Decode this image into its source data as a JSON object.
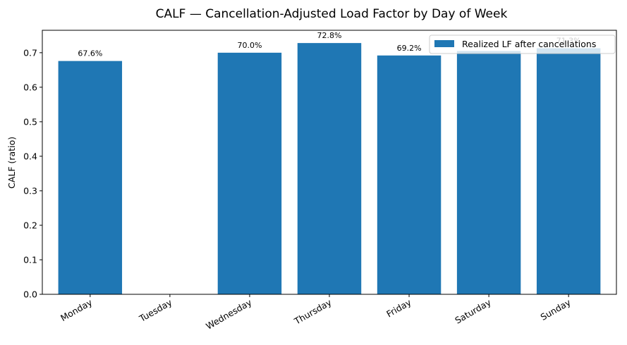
{
  "chart_data": {
    "type": "bar",
    "title": "CALF — Cancellation-Adjusted Load Factor by Day of Week",
    "xlabel": "",
    "ylabel": "CALF (ratio)",
    "categories": [
      "Monday",
      "Tuesday",
      "Wednesday",
      "Thursday",
      "Friday",
      "Saturday",
      "Sunday"
    ],
    "series": [
      {
        "name": "Realized LF after cancellations",
        "values": [
          0.676,
          null,
          0.7,
          0.728,
          0.692,
          0.705,
          0.713
        ],
        "value_labels": [
          "67.6%",
          "",
          "70.0%",
          "72.8%",
          "69.2%",
          "",
          "71.3%"
        ]
      }
    ],
    "ylim": [
      0,
      0.765
    ],
    "yticks": [
      "0.0",
      "0.1",
      "0.2",
      "0.3",
      "0.4",
      "0.5",
      "0.6",
      "0.7"
    ],
    "bar_color": "#1f77b4",
    "legend": "upper right",
    "grid": false
  }
}
